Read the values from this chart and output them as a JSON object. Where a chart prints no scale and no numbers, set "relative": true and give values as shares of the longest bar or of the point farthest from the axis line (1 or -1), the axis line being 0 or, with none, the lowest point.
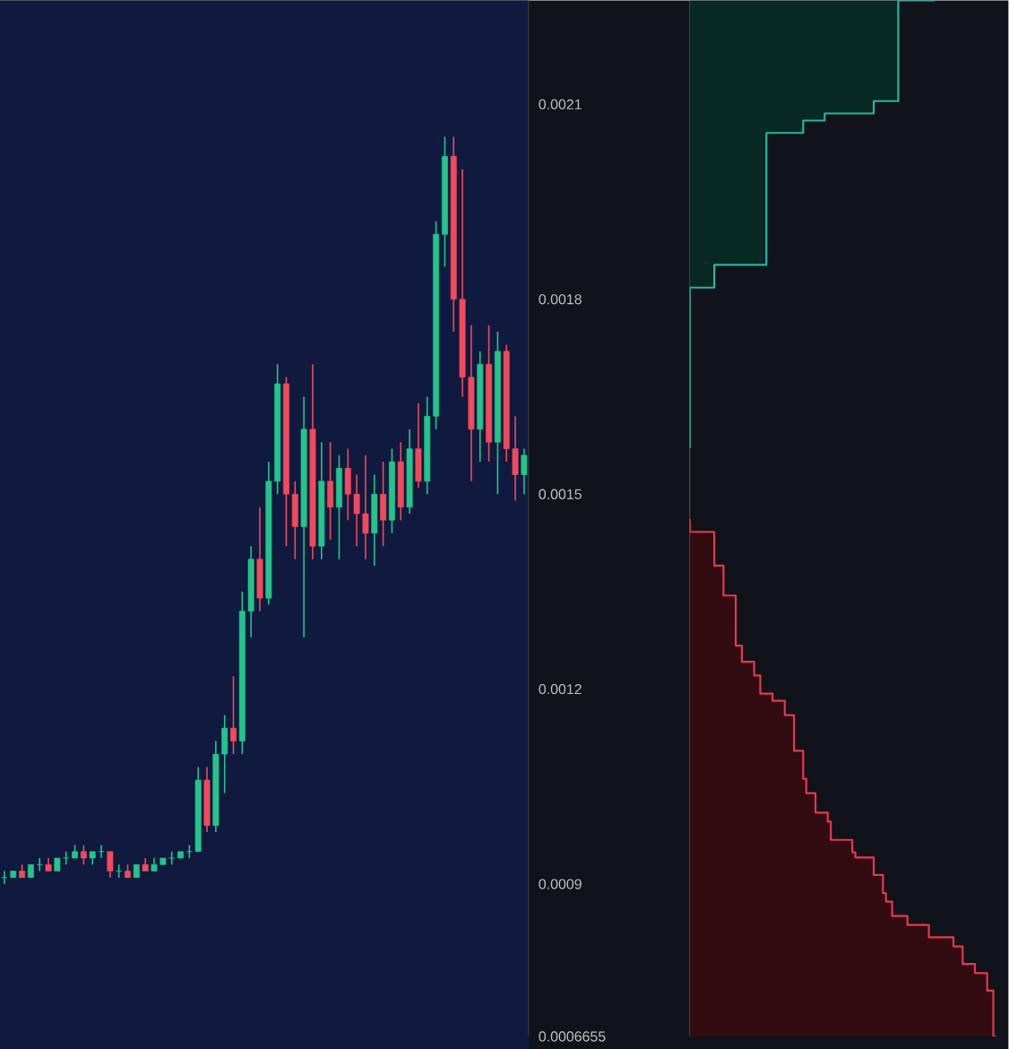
{
  "chart_data": [
    {
      "type": "candlestick",
      "categories": [
        null,
        null,
        null,
        null,
        null,
        null,
        null,
        null,
        null,
        null,
        null,
        null,
        null,
        null,
        null,
        null,
        null,
        null,
        null,
        null,
        null,
        null,
        null,
        null,
        null,
        null,
        null,
        null,
        null,
        null,
        null,
        null,
        null,
        null,
        null,
        null,
        null,
        null,
        null,
        null,
        null,
        null,
        null,
        null,
        null,
        null,
        null,
        null,
        null,
        null,
        null,
        null,
        null,
        null,
        null,
        null,
        null,
        null,
        null,
        null
      ],
      "ohlc": [
        [
          0.00091,
          0.00092,
          0.0009,
          0.00091
        ],
        [
          0.00091,
          0.00092,
          0.00091,
          0.00092
        ],
        [
          0.00092,
          0.00093,
          0.00091,
          0.00091
        ],
        [
          0.00091,
          0.00093,
          0.00091,
          0.00093
        ],
        [
          0.00093,
          0.00094,
          0.00092,
          0.00093
        ],
        [
          0.00093,
          0.00094,
          0.00092,
          0.00092
        ],
        [
          0.00092,
          0.00094,
          0.00092,
          0.00094
        ],
        [
          0.00094,
          0.00095,
          0.00093,
          0.00094
        ],
        [
          0.00094,
          0.00096,
          0.00094,
          0.00095
        ],
        [
          0.00095,
          0.00096,
          0.00093,
          0.00094
        ],
        [
          0.00094,
          0.00095,
          0.00093,
          0.00095
        ],
        [
          0.00095,
          0.00096,
          0.00094,
          0.00095
        ],
        [
          0.00095,
          0.00095,
          0.00091,
          0.00092
        ],
        [
          0.00092,
          0.00093,
          0.00091,
          0.00092
        ],
        [
          0.00092,
          0.00093,
          0.00091,
          0.00091
        ],
        [
          0.00091,
          0.00093,
          0.00091,
          0.00093
        ],
        [
          0.00093,
          0.00094,
          0.00092,
          0.00092
        ],
        [
          0.00092,
          0.00094,
          0.00092,
          0.00093
        ],
        [
          0.00093,
          0.00094,
          0.00093,
          0.00094
        ],
        [
          0.00094,
          0.00095,
          0.00093,
          0.00094
        ],
        [
          0.00094,
          0.00095,
          0.00094,
          0.00095
        ],
        [
          0.00095,
          0.00096,
          0.00094,
          0.00095
        ],
        [
          0.00095,
          0.00108,
          0.00095,
          0.00106
        ],
        [
          0.00106,
          0.00108,
          0.00098,
          0.00099
        ],
        [
          0.00099,
          0.00112,
          0.00098,
          0.0011
        ],
        [
          0.0011,
          0.00116,
          0.00104,
          0.00114
        ],
        [
          0.00114,
          0.00122,
          0.0011,
          0.00112
        ],
        [
          0.00112,
          0.00135,
          0.0011,
          0.00132
        ],
        [
          0.00132,
          0.00142,
          0.00128,
          0.0014
        ],
        [
          0.0014,
          0.00148,
          0.00132,
          0.00134
        ],
        [
          0.00134,
          0.00155,
          0.00133,
          0.00152
        ],
        [
          0.00152,
          0.0017,
          0.0015,
          0.00167
        ],
        [
          0.00167,
          0.00168,
          0.00142,
          0.0015
        ],
        [
          0.0015,
          0.00152,
          0.0014,
          0.00145
        ],
        [
          0.00145,
          0.00165,
          0.00128,
          0.0016
        ],
        [
          0.0016,
          0.0017,
          0.0014,
          0.00142
        ],
        [
          0.00142,
          0.00158,
          0.0014,
          0.00152
        ],
        [
          0.00152,
          0.00158,
          0.00143,
          0.00148
        ],
        [
          0.00148,
          0.00156,
          0.0014,
          0.00154
        ],
        [
          0.00154,
          0.00157,
          0.00146,
          0.0015
        ],
        [
          0.0015,
          0.00153,
          0.00142,
          0.00147
        ],
        [
          0.00147,
          0.00156,
          0.0014,
          0.00144
        ],
        [
          0.00144,
          0.00153,
          0.00139,
          0.0015
        ],
        [
          0.0015,
          0.00155,
          0.00142,
          0.00146
        ],
        [
          0.00146,
          0.00157,
          0.00144,
          0.00155
        ],
        [
          0.00155,
          0.00158,
          0.00146,
          0.00148
        ],
        [
          0.00148,
          0.0016,
          0.00147,
          0.00157
        ],
        [
          0.00157,
          0.00164,
          0.00151,
          0.00152
        ],
        [
          0.00152,
          0.00165,
          0.0015,
          0.00162
        ],
        [
          0.00162,
          0.00192,
          0.0016,
          0.0019
        ],
        [
          0.0019,
          0.00205,
          0.00185,
          0.00202
        ],
        [
          0.00202,
          0.00205,
          0.00175,
          0.0018
        ],
        [
          0.0018,
          0.002,
          0.00165,
          0.00168
        ],
        [
          0.00168,
          0.00176,
          0.00152,
          0.0016
        ],
        [
          0.0016,
          0.00172,
          0.00155,
          0.0017
        ],
        [
          0.0017,
          0.00176,
          0.00155,
          0.00158
        ],
        [
          0.00158,
          0.00175,
          0.0015,
          0.00172
        ],
        [
          0.00172,
          0.00173,
          0.00155,
          0.00157
        ],
        [
          0.00157,
          0.00162,
          0.00149,
          0.00153
        ],
        [
          0.00153,
          0.00157,
          0.0015,
          0.00156
        ]
      ],
      "colors": [
        "#22c58b",
        "#22c58b",
        "#f2495c",
        "#22c58b",
        "#22c58b",
        "#f2495c",
        "#22c58b",
        "#22c58b",
        "#22c58b",
        "#f2495c",
        "#22c58b",
        "#22c58b",
        "#f2495c",
        "#22c58b",
        "#f2495c",
        "#22c58b",
        "#f2495c",
        "#22c58b",
        "#22c58b",
        "#22c58b",
        "#22c58b",
        "#22c58b",
        "#22c58b",
        "#f2495c",
        "#22c58b",
        "#22c58b",
        "#f2495c",
        "#22c58b",
        "#22c58b",
        "#f2495c",
        "#22c58b",
        "#22c58b",
        "#f2495c",
        "#f2495c",
        "#22c58b",
        "#f2495c",
        "#22c58b",
        "#f2495c",
        "#22c58b",
        "#f2495c",
        "#f2495c",
        "#f2495c",
        "#22c58b",
        "#f2495c",
        "#22c58b",
        "#f2495c",
        "#22c58b",
        "#f2495c",
        "#22c58b",
        "#22c58b",
        "#22c58b",
        "#f2495c",
        "#f2495c",
        "#f2495c",
        "#22c58b",
        "#f2495c",
        "#22c58b",
        "#f2495c",
        "#f2495c",
        "#22c58b"
      ],
      "ylim": [
        0.0006655,
        0.00226
      ],
      "yticks": [
        0.0006655,
        0.0009,
        0.0012,
        0.0015,
        0.0018,
        0.0021
      ],
      "tick_labels": "y"
    },
    {
      "type": "step",
      "orientation": "horizontal",
      "relative": true,
      "ylim": [
        0.0006655,
        0.00226
      ],
      "tick_labels": false,
      "series": [
        {
          "color": "#26b5a0",
          "x": [
            0.001571,
            0.00181,
            0.001818,
            0.001853,
            0.002056,
            0.002075,
            0.002086,
            0.002105,
            0.00226
          ],
          "values": [
            0,
            0,
            0.08,
            0.25,
            0.37,
            0.44,
            0.6,
            0.68,
            0.8
          ]
        },
        {
          "color": "#e5384d",
          "x": [
            0.001462,
            0.001442,
            0.00139,
            0.001344,
            0.001267,
            0.001242,
            0.001221,
            0.001193,
            0.001182,
            0.00116,
            0.001114,
            0.001105,
            0.001062,
            0.00104,
            0.00101,
            0.000996,
            0.000968,
            0.000949,
            0.000941,
            0.000914,
            0.000886,
            0.000873,
            0.000851,
            0.000837,
            0.000818,
            0.000804,
            0.000777,
            0.000763,
            0.000736,
            0.0006655
          ],
          "values": [
            0,
            0.08,
            0.11,
            0.15,
            0.17,
            0.21,
            0.23,
            0.27,
            0.31,
            0.34,
            0.34,
            0.37,
            0.38,
            0.41,
            0.45,
            0.46,
            0.53,
            0.54,
            0.6,
            0.63,
            0.64,
            0.66,
            0.71,
            0.78,
            0.86,
            0.89,
            0.93,
            0.97,
            0.99,
            1.0
          ]
        }
      ]
    }
  ]
}
